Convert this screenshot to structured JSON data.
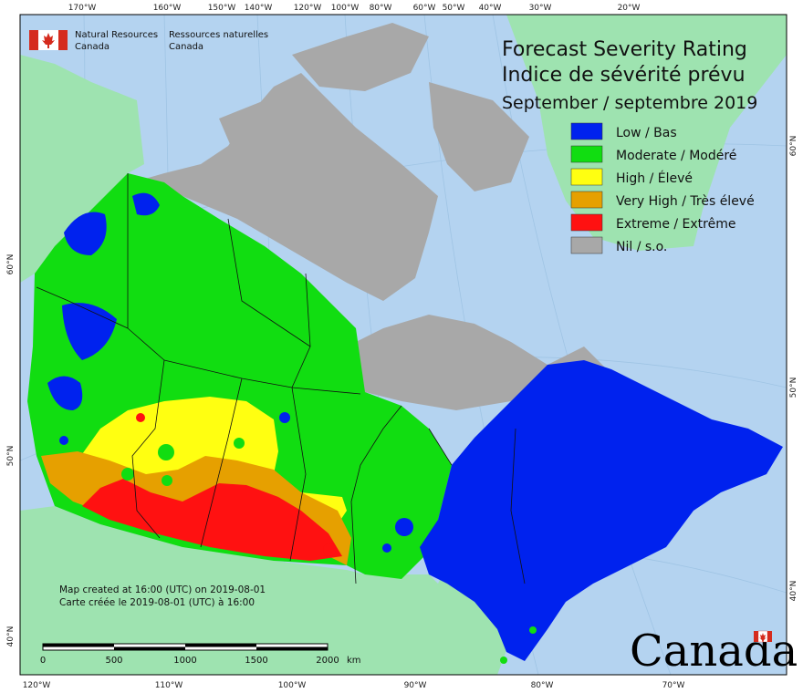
{
  "map": {
    "title_en": "Forecast Severity Rating",
    "title_fr": "Indice de sévérité prévu",
    "period": "September / septembre 2019",
    "agency_en_1": "Natural Resources",
    "agency_en_2": "Canada",
    "agency_fr_1": "Ressources naturelles",
    "agency_fr_2": "Canada",
    "created_en": "Map created at 16:00 (UTC) on 2019-08-01",
    "created_fr": "Carte créée le 2019-08-01 (UTC) à 16:00",
    "wordmark": "Canada",
    "scale_labels": [
      "0",
      "500",
      "1000",
      "1500",
      "2000"
    ],
    "scale_unit": "km",
    "top_ticks": [
      "170°W",
      "160°W",
      "150°W",
      "140°W",
      "120°W",
      "100°W",
      "80°W",
      "60°W",
      "50°W",
      "40°W",
      "30°W",
      "20°W"
    ],
    "bottom_ticks": [
      "120°W",
      "110°W",
      "100°W",
      "90°W",
      "80°W",
      "70°W"
    ],
    "left_ticks": [
      "60°N",
      "50°N",
      "40°N"
    ],
    "right_ticks": [
      "60°N",
      "50°N",
      "40°N"
    ],
    "legend": [
      {
        "label": "Low / Bas",
        "color": "#0022ee"
      },
      {
        "label": "Moderate / Modéré",
        "color": "#11dd11"
      },
      {
        "label": "High / Élevé",
        "color": "#ffff11"
      },
      {
        "label": "Very High / Très élevé",
        "color": "#e6a000"
      },
      {
        "label": "Extreme / Extrême",
        "color": "#ff1111"
      },
      {
        "label": "Nil / s.o.",
        "color": "#a8a8a8"
      }
    ],
    "colors": {
      "ocean": "#b4d3f0",
      "other_land": "#9ee3b0",
      "nil": "#a8a8a8",
      "low": "#0022ee",
      "moderate": "#11dd11",
      "high": "#ffff11",
      "very_high": "#e6a000",
      "extreme": "#ff1111",
      "flag_red": "#d52b1e"
    }
  }
}
